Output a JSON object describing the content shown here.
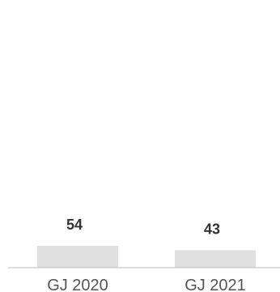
{
  "chart_data": {
    "type": "bar",
    "categories": [
      "GJ 2020",
      "GJ 2021"
    ],
    "values": [
      54,
      43
    ],
    "title": "",
    "xlabel": "",
    "ylabel": "",
    "ylim": [
      0,
      100
    ],
    "data_labels": [
      "54",
      "43"
    ],
    "grid": false,
    "legend": "none",
    "colors": {
      "bar": "#e0e0e0",
      "baseline": "#bdbdbd",
      "value_text": "#333333",
      "tick_text": "#555555"
    }
  }
}
